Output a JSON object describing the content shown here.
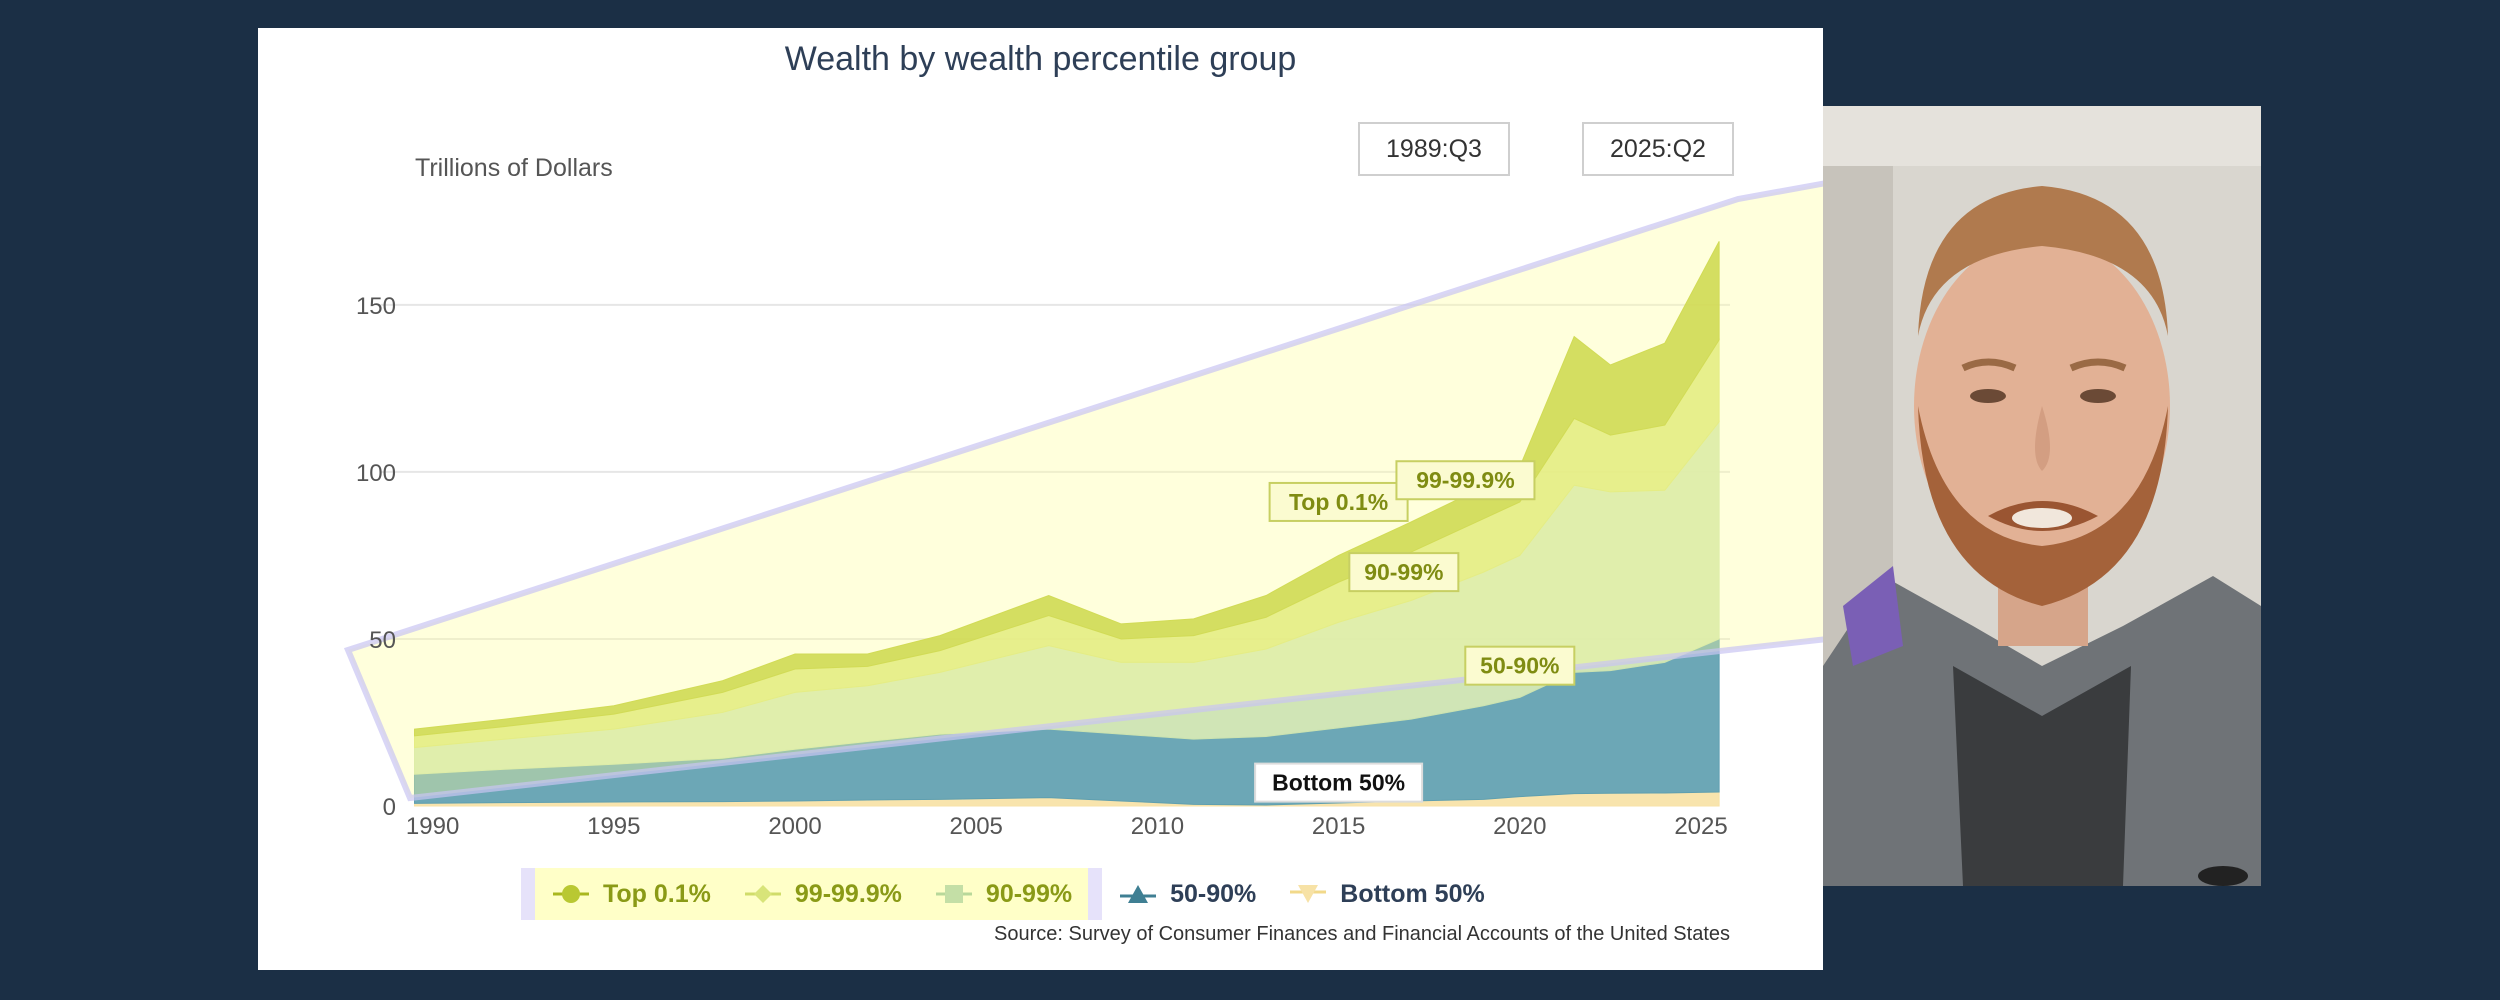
{
  "chart_data": {
    "type": "area",
    "stacked": true,
    "title": "Wealth by wealth percentile group",
    "ylabel": "Trillions of Dollars",
    "xlabel": "",
    "date_range": {
      "start": "1989:Q3",
      "end": "2025:Q2"
    },
    "x": [
      1989.5,
      1992,
      1995,
      1998,
      2000,
      2002,
      2004,
      2007,
      2009,
      2011,
      2013,
      2015,
      2017,
      2019,
      2020,
      2021.5,
      2022.5,
      2024,
      2025.5
    ],
    "series": [
      {
        "name": "Bottom 50%",
        "values": [
          0.8,
          1.0,
          1.2,
          1.3,
          1.5,
          1.8,
          2.0,
          2.5,
          1.5,
          0.5,
          0.3,
          0.9,
          1.5,
          2.0,
          2.8,
          3.7,
          3.8,
          3.9,
          4.2
        ]
      },
      {
        "name": "50-90%",
        "values": [
          8.7,
          10.0,
          11.3,
          13.0,
          15.5,
          17.5,
          19.5,
          20.5,
          20.0,
          19.5,
          20.5,
          22.5,
          24.5,
          28.0,
          29.7,
          36.3,
          36.7,
          39.1,
          45.8
        ]
      },
      {
        "name": "90-99%",
        "values": [
          8.0,
          9.0,
          10.5,
          13.7,
          17.0,
          16.7,
          18.5,
          25.0,
          21.5,
          23.0,
          26.2,
          31.6,
          35.5,
          40.0,
          42.5,
          56.0,
          53.5,
          51.5,
          65.0
        ]
      },
      {
        "name": "99-99.9%",
        "values": [
          3.5,
          3.8,
          4.5,
          6.0,
          7.0,
          5.8,
          6.5,
          9.0,
          7.0,
          8.0,
          9.5,
          12.0,
          14.5,
          16.0,
          16.0,
          20.0,
          17.0,
          19.5,
          24.5
        ]
      },
      {
        "name": "Top 0.1%",
        "values": [
          2.0,
          2.2,
          2.5,
          3.5,
          4.5,
          3.7,
          4.5,
          6.0,
          4.5,
          5.0,
          6.5,
          8.0,
          9.0,
          9.5,
          10.5,
          24.5,
          21.0,
          24.5,
          29.5
        ]
      }
    ],
    "yticks": [
      0,
      50,
      100,
      150
    ],
    "ylim": [
      0,
      170
    ],
    "xticks": [
      1990,
      1995,
      2000,
      2005,
      2010,
      2015,
      2020,
      2025
    ],
    "xlim": [
      1989.1,
      2025.8
    ],
    "grid": true,
    "legend_position": "bottom",
    "annotations": [
      {
        "text": "Top 0.1%",
        "x": 2015,
        "y": 91
      },
      {
        "text": "99-99.9%",
        "x": 2018.5,
        "y": 97.5
      },
      {
        "text": "90-99%",
        "x": 2016.8,
        "y": 70
      },
      {
        "text": "50-90%",
        "x": 2020,
        "y": 42
      },
      {
        "text": "Bottom 50%",
        "x": 2015,
        "y": 7
      }
    ],
    "source": "Source: Survey of Consumer Finances and Financial Accounts of the United States",
    "colors": {
      "Top 0.1%": "#b9c832",
      "99-99.9%": "#d8e479",
      "90-99%": "#cce3b0",
      "50-90%": "#5f9fb0",
      "Bottom 50%": "#f7e2a6"
    }
  }
}
